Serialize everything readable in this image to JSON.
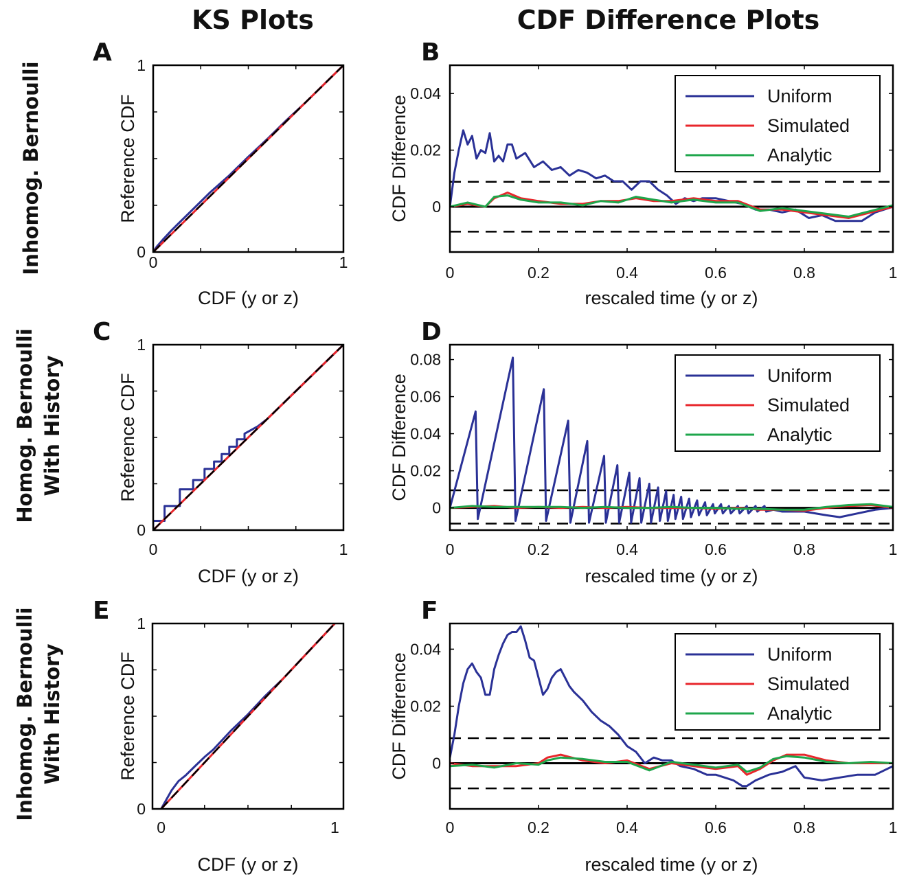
{
  "headers": {
    "ks": "KS Plots",
    "cdf": "CDF Difference Plots"
  },
  "row_labels": [
    [
      "Inhomog. Bernoulli"
    ],
    [
      "Homog. Bernoulli",
      "With History"
    ],
    [
      "Inhomog. Bernoulli",
      "With History"
    ]
  ],
  "colors": {
    "uniform": "#2a3196",
    "simulated": "#e8262b",
    "analytic": "#1ea64b",
    "reference": "#000000"
  },
  "chart_data": [
    {
      "id": "A",
      "label": "A",
      "type": "line",
      "xlabel": "CDF (y or z)",
      "ylabel": "Reference CDF",
      "xlim": [
        0,
        1
      ],
      "ylim": [
        0,
        1
      ],
      "xticks": [
        "0",
        "1"
      ],
      "yticks": [
        "0",
        "1"
      ],
      "series": [
        {
          "name": "",
          "color_key": "uniform",
          "x": [
            0,
            0.02,
            0.05,
            0.1,
            0.2,
            0.3,
            0.4,
            0.5,
            0.6,
            0.7,
            0.8,
            0.9,
            1
          ],
          "y": [
            0,
            0.03,
            0.065,
            0.12,
            0.22,
            0.32,
            0.41,
            0.51,
            0.605,
            0.705,
            0.8,
            0.9,
            1
          ]
        },
        {
          "name": "",
          "color_key": "simulated",
          "x": [
            0,
            1
          ],
          "y": [
            0,
            1
          ]
        }
      ],
      "reference_line": {
        "style": "dashed",
        "x": [
          0,
          1
        ],
        "y": [
          0,
          1
        ]
      }
    },
    {
      "id": "B",
      "label": "B",
      "type": "line",
      "xlabel": "rescaled time (y or z)",
      "ylabel": "CDF Difference",
      "xlim": [
        0,
        1
      ],
      "ylim": [
        -0.016,
        0.05
      ],
      "xticks": [
        "0",
        "0.2",
        "0.4",
        "0.6",
        "0.8",
        "1"
      ],
      "yticks": [
        "0",
        "0.02",
        "0.04"
      ],
      "bounds": [
        0.0088,
        -0.0088
      ],
      "legend": [
        "Uniform",
        "Simulated",
        "Analytic"
      ],
      "series": [
        {
          "name": "Uniform",
          "color_key": "uniform",
          "x": [
            0,
            0.01,
            0.02,
            0.03,
            0.04,
            0.05,
            0.06,
            0.07,
            0.08,
            0.09,
            0.1,
            0.11,
            0.12,
            0.13,
            0.14,
            0.15,
            0.17,
            0.19,
            0.21,
            0.23,
            0.25,
            0.27,
            0.29,
            0.31,
            0.33,
            0.35,
            0.37,
            0.39,
            0.41,
            0.43,
            0.45,
            0.47,
            0.49,
            0.51,
            0.53,
            0.55,
            0.57,
            0.6,
            0.63,
            0.66,
            0.69,
            0.72,
            0.75,
            0.78,
            0.81,
            0.84,
            0.87,
            0.9,
            0.93,
            0.96,
            1
          ],
          "y": [
            0,
            0.012,
            0.02,
            0.027,
            0.022,
            0.025,
            0.017,
            0.02,
            0.019,
            0.026,
            0.016,
            0.018,
            0.016,
            0.022,
            0.022,
            0.017,
            0.019,
            0.014,
            0.016,
            0.013,
            0.014,
            0.011,
            0.013,
            0.012,
            0.01,
            0.011,
            0.009,
            0.009,
            0.006,
            0.009,
            0.009,
            0.006,
            0.004,
            0.001,
            0.003,
            0.002,
            0.003,
            0.003,
            0.002,
            0.001,
            -0.001,
            -0.001,
            -0.002,
            -0.001,
            -0.004,
            -0.003,
            -0.005,
            -0.005,
            -0.005,
            -0.002,
            0
          ]
        },
        {
          "name": "Simulated",
          "color_key": "simulated",
          "x": [
            0,
            0.04,
            0.08,
            0.1,
            0.13,
            0.16,
            0.2,
            0.25,
            0.3,
            0.34,
            0.38,
            0.42,
            0.46,
            0.5,
            0.55,
            0.6,
            0.65,
            0.7,
            0.75,
            0.8,
            0.85,
            0.9,
            0.95,
            1
          ],
          "y": [
            0,
            0.001,
            0,
            0.003,
            0.005,
            0.003,
            0.002,
            0.001,
            0.001,
            0.002,
            0.002,
            0.003,
            0.002,
            0.002,
            0.003,
            0.002,
            0.002,
            -0.001,
            -0.001,
            -0.002,
            -0.003,
            -0.004,
            -0.002,
            0
          ]
        },
        {
          "name": "Analytic",
          "color_key": "analytic",
          "x": [
            0,
            0.04,
            0.08,
            0.1,
            0.13,
            0.16,
            0.2,
            0.25,
            0.3,
            0.34,
            0.38,
            0.42,
            0.46,
            0.5,
            0.55,
            0.6,
            0.65,
            0.7,
            0.75,
            0.8,
            0.85,
            0.9,
            0.95,
            1
          ],
          "y": [
            0,
            0.0015,
            0,
            0.0035,
            0.004,
            0.0025,
            0.0015,
            0.0015,
            0.0005,
            0.002,
            0.0015,
            0.0035,
            0.0025,
            0.0015,
            0.0025,
            0.0015,
            0.0015,
            -0.0015,
            -0.0005,
            -0.0015,
            -0.0025,
            -0.0035,
            -0.0015,
            0.0005
          ]
        }
      ]
    },
    {
      "id": "C",
      "label": "C",
      "type": "line",
      "xlabel": "CDF (y or z)",
      "ylabel": "Reference CDF",
      "xlim": [
        0,
        1
      ],
      "ylim": [
        0,
        1
      ],
      "xticks": [
        "0",
        "1"
      ],
      "yticks": [
        "0",
        "1"
      ],
      "series": [
        {
          "name": "",
          "color_key": "uniform",
          "x": [
            0,
            0,
            0.06,
            0.06,
            0.14,
            0.14,
            0.21,
            0.21,
            0.27,
            0.27,
            0.32,
            0.32,
            0.36,
            0.36,
            0.4,
            0.4,
            0.44,
            0.44,
            0.48,
            0.48,
            0.55,
            0.6,
            0.7,
            0.8,
            0.9,
            1
          ],
          "y": [
            0,
            0.05,
            0.05,
            0.13,
            0.13,
            0.22,
            0.22,
            0.27,
            0.27,
            0.33,
            0.33,
            0.37,
            0.37,
            0.41,
            0.41,
            0.45,
            0.45,
            0.49,
            0.49,
            0.52,
            0.56,
            0.6,
            0.7,
            0.8,
            0.9,
            1
          ]
        },
        {
          "name": "",
          "color_key": "simulated",
          "x": [
            0,
            1
          ],
          "y": [
            0,
            1
          ]
        }
      ],
      "reference_line": {
        "style": "dashed",
        "x": [
          0,
          1
        ],
        "y": [
          0,
          1
        ]
      }
    },
    {
      "id": "D",
      "label": "D",
      "type": "line",
      "xlabel": "rescaled time (y or z)",
      "ylabel": "CDF Difference",
      "xlim": [
        0,
        1
      ],
      "ylim": [
        -0.012,
        0.088
      ],
      "xticks": [
        "0",
        "0.2",
        "0.4",
        "0.6",
        "0.8",
        "1"
      ],
      "yticks": [
        "0",
        "0.02",
        "0.04",
        "0.06",
        "0.08"
      ],
      "bounds": [
        0.0095,
        -0.0085
      ],
      "legend": [
        "Uniform",
        "Simulated",
        "Analytic"
      ],
      "series": [
        {
          "name": "Uniform",
          "color_key": "uniform",
          "x": [
            0,
            0.058,
            0.063,
            0.142,
            0.148,
            0.212,
            0.217,
            0.267,
            0.272,
            0.31,
            0.314,
            0.348,
            0.352,
            0.378,
            0.382,
            0.405,
            0.409,
            0.428,
            0.432,
            0.45,
            0.454,
            0.47,
            0.474,
            0.488,
            0.492,
            0.505,
            0.509,
            0.522,
            0.526,
            0.54,
            0.544,
            0.558,
            0.562,
            0.576,
            0.58,
            0.594,
            0.598,
            0.612,
            0.616,
            0.63,
            0.634,
            0.65,
            0.654,
            0.67,
            0.674,
            0.69,
            0.694,
            0.71,
            0.714,
            0.73,
            0.75,
            0.8,
            0.85,
            0.88,
            0.92,
            0.96,
            1
          ],
          "y": [
            0,
            0.052,
            -0.006,
            0.081,
            -0.007,
            0.064,
            -0.007,
            0.047,
            -0.008,
            0.036,
            -0.008,
            0.028,
            -0.008,
            0.023,
            -0.008,
            0.019,
            -0.008,
            0.016,
            -0.008,
            0.013,
            -0.008,
            0.011,
            -0.007,
            0.009,
            -0.007,
            0.007,
            -0.006,
            0.006,
            -0.006,
            0.005,
            -0.005,
            0.004,
            -0.004,
            0.003,
            -0.004,
            0.002,
            -0.003,
            0.002,
            -0.003,
            0.001,
            -0.003,
            0.001,
            -0.003,
            0.001,
            -0.003,
            0.001,
            -0.002,
            0.001,
            -0.002,
            -0.001,
            -0.002,
            -0.002,
            -0.004,
            -0.005,
            -0.003,
            -0.001,
            0
          ]
        },
        {
          "name": "Simulated",
          "color_key": "simulated",
          "x": [
            0,
            0.05,
            0.1,
            0.15,
            0.2,
            0.25,
            0.3,
            0.35,
            0.4,
            0.45,
            0.5,
            0.55,
            0.6,
            0.65,
            0.7,
            0.75,
            0.8,
            0.85,
            0.9,
            0.95,
            1
          ],
          "y": [
            0,
            0.0005,
            0.001,
            0,
            0.0005,
            0,
            0.0005,
            0,
            0.0005,
            0,
            0,
            0,
            -0.0005,
            0,
            -0.001,
            -0.001,
            -0.0015,
            0,
            0.001,
            0.0015,
            0
          ]
        },
        {
          "name": "Analytic",
          "color_key": "analytic",
          "x": [
            0,
            0.05,
            0.1,
            0.15,
            0.2,
            0.25,
            0.3,
            0.35,
            0.4,
            0.45,
            0.5,
            0.55,
            0.6,
            0.65,
            0.7,
            0.75,
            0.8,
            0.85,
            0.9,
            0.95,
            1
          ],
          "y": [
            0,
            0.001,
            0.0005,
            0.0005,
            0.0005,
            0.0005,
            0,
            0.0005,
            0,
            0,
            0.0005,
            0,
            0,
            -0.0005,
            -0.0005,
            -0.001,
            -0.001,
            0.0005,
            0.0015,
            0.002,
            0.0005
          ]
        }
      ]
    },
    {
      "id": "E",
      "label": "E",
      "type": "line",
      "xlabel": "CDF (y or z)",
      "ylabel": "Reference CDF",
      "xlim": [
        -0.05,
        1.05
      ],
      "ylim": [
        0,
        1
      ],
      "xticks": [
        "0",
        "1"
      ],
      "yticks": [
        "0",
        "1"
      ],
      "series": [
        {
          "name": "",
          "color_key": "uniform",
          "x": [
            0,
            0.03,
            0.06,
            0.1,
            0.14,
            0.2,
            0.25,
            0.3,
            0.35,
            0.4,
            0.5,
            0.6,
            0.7,
            0.8,
            0.9,
            1
          ],
          "y": [
            0,
            0.05,
            0.1,
            0.15,
            0.18,
            0.235,
            0.28,
            0.32,
            0.37,
            0.42,
            0.51,
            0.61,
            0.7,
            0.8,
            0.9,
            1
          ]
        },
        {
          "name": "",
          "color_key": "simulated",
          "x": [
            0,
            1
          ],
          "y": [
            0,
            1
          ]
        }
      ],
      "reference_line": {
        "style": "dashed",
        "x": [
          0,
          1
        ],
        "y": [
          0,
          1
        ]
      }
    },
    {
      "id": "F",
      "label": "F",
      "type": "line",
      "xlabel": "rescaled time (y or z)",
      "ylabel": "CDF Difference",
      "xlim": [
        0,
        1
      ],
      "ylim": [
        -0.016,
        0.049
      ],
      "xticks": [
        "0",
        "0.2",
        "0.4",
        "0.6",
        "0.8",
        "1"
      ],
      "yticks": [
        "0",
        "0.02",
        "0.04"
      ],
      "bounds": [
        0.0088,
        -0.0088
      ],
      "legend": [
        "Uniform",
        "Simulated",
        "Analytic"
      ],
      "series": [
        {
          "name": "Uniform",
          "color_key": "uniform",
          "x": [
            0,
            0.01,
            0.02,
            0.03,
            0.04,
            0.05,
            0.06,
            0.07,
            0.08,
            0.09,
            0.1,
            0.11,
            0.12,
            0.13,
            0.14,
            0.15,
            0.16,
            0.17,
            0.18,
            0.19,
            0.2,
            0.21,
            0.22,
            0.23,
            0.24,
            0.25,
            0.26,
            0.27,
            0.28,
            0.3,
            0.32,
            0.34,
            0.36,
            0.38,
            0.4,
            0.42,
            0.44,
            0.46,
            0.48,
            0.5,
            0.52,
            0.55,
            0.58,
            0.6,
            0.62,
            0.64,
            0.66,
            0.67,
            0.69,
            0.72,
            0.75,
            0.78,
            0.8,
            0.84,
            0.88,
            0.92,
            0.96,
            1
          ],
          "y": [
            0.002,
            0.01,
            0.02,
            0.028,
            0.033,
            0.035,
            0.032,
            0.03,
            0.024,
            0.024,
            0.033,
            0.038,
            0.042,
            0.045,
            0.046,
            0.046,
            0.048,
            0.043,
            0.037,
            0.036,
            0.03,
            0.024,
            0.026,
            0.03,
            0.032,
            0.033,
            0.03,
            0.027,
            0.025,
            0.022,
            0.018,
            0.015,
            0.013,
            0.01,
            0.006,
            0.004,
            0,
            0.002,
            0.001,
            0.001,
            -0.001,
            -0.002,
            -0.004,
            -0.004,
            -0.005,
            -0.006,
            -0.008,
            -0.008,
            -0.006,
            -0.004,
            -0.003,
            -0.001,
            -0.005,
            -0.006,
            -0.005,
            -0.004,
            -0.004,
            -0.001
          ]
        },
        {
          "name": "Simulated",
          "color_key": "simulated",
          "x": [
            0,
            0.05,
            0.1,
            0.15,
            0.2,
            0.22,
            0.25,
            0.3,
            0.35,
            0.4,
            0.45,
            0.5,
            0.55,
            0.6,
            0.65,
            0.67,
            0.7,
            0.73,
            0.76,
            0.8,
            0.85,
            0.9,
            0.95,
            1
          ],
          "y": [
            0,
            -0.001,
            -0.001,
            -0.001,
            0,
            0.002,
            0.003,
            0.001,
            0,
            0.001,
            -0.002,
            0,
            -0.001,
            -0.002,
            -0.001,
            -0.004,
            -0.002,
            0.001,
            0.003,
            0.003,
            0.001,
            0,
            0,
            0
          ]
        },
        {
          "name": "Analytic",
          "color_key": "analytic",
          "x": [
            0,
            0.05,
            0.1,
            0.15,
            0.2,
            0.22,
            0.25,
            0.3,
            0.35,
            0.4,
            0.45,
            0.5,
            0.55,
            0.6,
            0.65,
            0.67,
            0.7,
            0.73,
            0.76,
            0.8,
            0.85,
            0.9,
            0.95,
            1
          ],
          "y": [
            -0.001,
            -0.0005,
            -0.0015,
            0,
            -0.0005,
            0.001,
            0.002,
            0.0015,
            0.0005,
            0.0005,
            -0.0025,
            0.0005,
            -0.0005,
            -0.0015,
            -0.0005,
            -0.003,
            -0.0015,
            0.0015,
            0.0025,
            0.002,
            0.0005,
            0,
            0.0005,
            0
          ]
        }
      ]
    }
  ]
}
